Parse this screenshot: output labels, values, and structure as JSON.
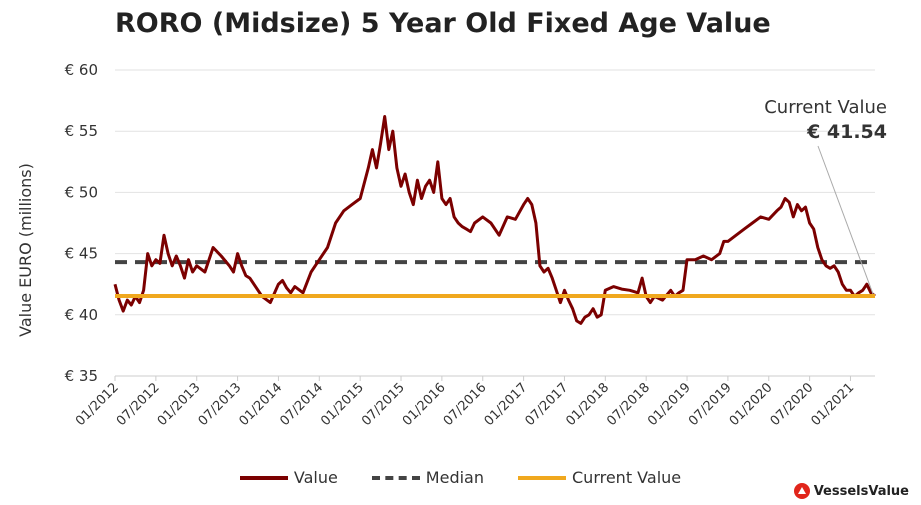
{
  "chart_data": {
    "type": "line",
    "title": "RORO (Midsize) 5 Year Old Fixed Age Value",
    "ylabel": "Value EURO (millions)",
    "xlabel": "",
    "ylim": [
      35,
      60
    ],
    "yticks": [
      35,
      40,
      45,
      50,
      55,
      60
    ],
    "ytick_labels": [
      "€ 35",
      "€ 40",
      "€ 45",
      "€ 50",
      "€ 55",
      "€ 60"
    ],
    "xtick_labels": [
      "01/2012",
      "07/2012",
      "01/2013",
      "07/2013",
      "01/2014",
      "07/2014",
      "01/2015",
      "07/2015",
      "01/2016",
      "07/2016",
      "01/2017",
      "07/2017",
      "01/2018",
      "07/2018",
      "01/2019",
      "07/2019",
      "01/2020",
      "07/2020",
      "01/2021"
    ],
    "grid": true,
    "legend_position": "bottom",
    "series": [
      {
        "name": "Value",
        "color": "#7b0000",
        "style": "solid",
        "x": [
          2012.0,
          2012.05,
          2012.1,
          2012.15,
          2012.2,
          2012.25,
          2012.3,
          2012.35,
          2012.4,
          2012.45,
          2012.5,
          2012.55,
          2012.6,
          2012.65,
          2012.7,
          2012.75,
          2012.8,
          2012.85,
          2012.9,
          2012.95,
          2013.0,
          2013.1,
          2013.2,
          2013.3,
          2013.4,
          2013.45,
          2013.5,
          2013.55,
          2013.6,
          2013.65,
          2013.7,
          2013.75,
          2013.8,
          2013.9,
          2014.0,
          2014.05,
          2014.1,
          2014.15,
          2014.2,
          2014.3,
          2014.4,
          2014.5,
          2014.6,
          2014.7,
          2014.8,
          2014.9,
          2015.0,
          2015.1,
          2015.15,
          2015.2,
          2015.25,
          2015.3,
          2015.35,
          2015.4,
          2015.45,
          2015.5,
          2015.55,
          2015.6,
          2015.65,
          2015.7,
          2015.75,
          2015.8,
          2015.85,
          2015.9,
          2015.95,
          2016.0,
          2016.05,
          2016.1,
          2016.15,
          2016.2,
          2016.25,
          2016.3,
          2016.35,
          2016.4,
          2016.5,
          2016.6,
          2016.7,
          2016.8,
          2016.9,
          2017.0,
          2017.05,
          2017.1,
          2017.15,
          2017.2,
          2017.25,
          2017.3,
          2017.35,
          2017.4,
          2017.45,
          2017.5,
          2017.55,
          2017.6,
          2017.65,
          2017.7,
          2017.75,
          2017.8,
          2017.85,
          2017.9,
          2017.95,
          2018.0,
          2018.1,
          2018.2,
          2018.3,
          2018.4,
          2018.45,
          2018.5,
          2018.55,
          2018.6,
          2018.7,
          2018.8,
          2018.85,
          2018.9,
          2018.95,
          2019.0,
          2019.1,
          2019.2,
          2019.3,
          2019.4,
          2019.45,
          2019.5,
          2019.6,
          2019.7,
          2019.8,
          2019.9,
          2020.0,
          2020.1,
          2020.15,
          2020.2,
          2020.25,
          2020.3,
          2020.35,
          2020.4,
          2020.45,
          2020.5,
          2020.55,
          2020.6,
          2020.65,
          2020.7,
          2020.75,
          2020.8,
          2020.85,
          2020.9,
          2020.95,
          2021.0,
          2021.05,
          2021.1,
          2021.15,
          2021.2,
          2021.25,
          2021.3
        ],
        "y": [
          42.5,
          41.2,
          40.3,
          41.2,
          40.8,
          41.5,
          41.0,
          42.0,
          45.0,
          44.0,
          44.5,
          44.2,
          46.5,
          45.0,
          44.0,
          44.8,
          44.0,
          43.0,
          44.5,
          43.5,
          44.0,
          43.5,
          45.5,
          44.8,
          44.0,
          43.5,
          45.0,
          44.0,
          43.2,
          43.0,
          42.5,
          42.0,
          41.5,
          41.0,
          42.5,
          42.8,
          42.2,
          41.8,
          42.3,
          41.8,
          43.5,
          44.5,
          45.5,
          47.5,
          48.5,
          49.0,
          49.5,
          52.0,
          53.5,
          52.0,
          54.0,
          56.2,
          53.5,
          55.0,
          52.0,
          50.5,
          51.5,
          50.0,
          49.0,
          51.0,
          49.5,
          50.5,
          51.0,
          50.0,
          52.5,
          49.5,
          49.0,
          49.5,
          48.0,
          47.5,
          47.2,
          47.0,
          46.8,
          47.5,
          48.0,
          47.5,
          46.5,
          48.0,
          47.8,
          49.0,
          49.5,
          49.0,
          47.5,
          44.0,
          43.5,
          43.8,
          43.0,
          42.0,
          41.0,
          42.0,
          41.2,
          40.5,
          39.5,
          39.3,
          39.8,
          40.0,
          40.5,
          39.8,
          40.0,
          42.0,
          42.3,
          42.1,
          42.0,
          41.8,
          43.0,
          41.5,
          41.0,
          41.5,
          41.2,
          42.0,
          41.5,
          41.8,
          42.0,
          44.5,
          44.5,
          44.8,
          44.5,
          45.0,
          46.0,
          46.0,
          46.5,
          47.0,
          47.5,
          48.0,
          47.8,
          48.5,
          48.8,
          49.5,
          49.2,
          48.0,
          49.0,
          48.5,
          48.8,
          47.5,
          47.0,
          45.5,
          44.5,
          44.0,
          43.8,
          44.0,
          43.5,
          42.5,
          42.0,
          42.0,
          41.5,
          41.8,
          42.0,
          42.5,
          41.8,
          41.54
        ]
      },
      {
        "name": "Median",
        "color": "#444444",
        "style": "dashed",
        "value": 44.3
      },
      {
        "name": "Current Value",
        "color": "#f0a81e",
        "style": "solid",
        "value": 41.54
      }
    ],
    "annotation": {
      "label": "Current Value",
      "value_label": "€ 41.54"
    }
  },
  "brand": {
    "name": "VesselsValue",
    "accent": "#e1251b"
  }
}
